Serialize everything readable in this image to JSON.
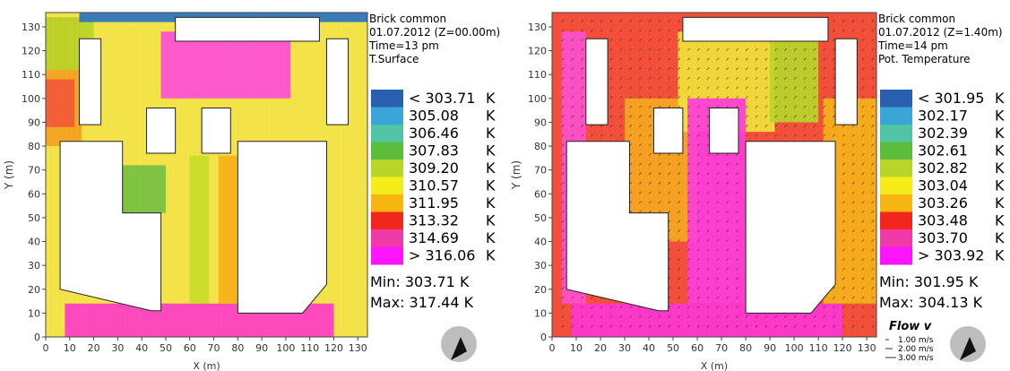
{
  "chart_data": [
    {
      "type": "heatmap",
      "title": "Brick common",
      "date": "01.07.2012 (Z=00.00m)",
      "time": "Time=13 pm",
      "variable": "T.Surface",
      "xlabel": "X (m)",
      "ylabel": "Y (m)",
      "xlim": [
        0,
        134
      ],
      "ylim": [
        0,
        136
      ],
      "xticks": [
        "0",
        "10",
        "20",
        "30",
        "40",
        "50",
        "60",
        "70",
        "80",
        "90",
        "100",
        "110",
        "120",
        "130"
      ],
      "yticks": [
        "0",
        "10",
        "20",
        "30",
        "40",
        "50",
        "60",
        "70",
        "80",
        "90",
        "100",
        "110",
        "120",
        "130"
      ],
      "legend": {
        "items": [
          {
            "label": "< 303.71",
            "unit": "K",
            "color": "#2a5fb0"
          },
          {
            "label": "305.08",
            "unit": "K",
            "color": "#3aa6d8"
          },
          {
            "label": "306.46",
            "unit": "K",
            "color": "#52c4a6"
          },
          {
            "label": "307.83",
            "unit": "K",
            "color": "#5cbc3c"
          },
          {
            "label": "309.20",
            "unit": "K",
            "color": "#b8d62a"
          },
          {
            "label": "310.57",
            "unit": "K",
            "color": "#f5ec1a"
          },
          {
            "label": "311.95",
            "unit": "K",
            "color": "#f7b512"
          },
          {
            "label": "313.32",
            "unit": "K",
            "color": "#f2261d"
          },
          {
            "label": "314.69",
            "unit": "K",
            "color": "#f03aa8"
          },
          {
            "label": "> 316.06",
            "unit": "K",
            "color": "#ff14ff"
          }
        ],
        "min": "Min: 303.71 K",
        "max": "Max: 317.44 K"
      },
      "zones": [
        {
          "x": [
            0,
            134
          ],
          "y": [
            0,
            136
          ],
          "value": "yellow",
          "color": "#f3e23a"
        },
        {
          "x": [
            0,
            15
          ],
          "y": [
            80,
            134
          ],
          "value": "orange",
          "color": "#f3a21f"
        },
        {
          "x": [
            0,
            12
          ],
          "y": [
            88,
            108
          ],
          "value": "red",
          "color": "#f25a3a"
        },
        {
          "x": [
            0,
            20
          ],
          "y": [
            112,
            134
          ],
          "value": "greenish",
          "color": "#b8d62a"
        },
        {
          "x": [
            8,
            120
          ],
          "y": [
            0,
            14
          ],
          "value": "magenta",
          "color": "#ff3dc8"
        },
        {
          "x": [
            48,
            102
          ],
          "y": [
            100,
            128
          ],
          "value": "magenta",
          "color": "#ff4ed8"
        },
        {
          "x": [
            30,
            50
          ],
          "y": [
            52,
            72
          ],
          "value": "green",
          "color": "#76c043"
        },
        {
          "x": [
            60,
            68
          ],
          "y": [
            14,
            76
          ],
          "value": "greenyellow",
          "color": "#c8dd2a"
        },
        {
          "x": [
            72,
            80
          ],
          "y": [
            14,
            76
          ],
          "value": "orange",
          "color": "#f6b21a"
        },
        {
          "x": [
            14,
            134
          ],
          "y": [
            132,
            136
          ],
          "value": "blue",
          "color": "#2b73c4"
        }
      ]
    },
    {
      "type": "heatmap",
      "title": "Brick common",
      "date": "01.07.2012 (Z=1.40m)",
      "time": "Time=14 pm",
      "variable": "Pot. Temperature",
      "xlabel": "X (m)",
      "ylabel": "Y (m)",
      "xlim": [
        0,
        134
      ],
      "ylim": [
        0,
        136
      ],
      "xticks": [
        "0",
        "10",
        "20",
        "30",
        "40",
        "50",
        "60",
        "70",
        "80",
        "90",
        "100",
        "110",
        "120",
        "130"
      ],
      "yticks": [
        "0",
        "10",
        "20",
        "30",
        "40",
        "50",
        "60",
        "70",
        "80",
        "90",
        "100",
        "110",
        "120",
        "130"
      ],
      "legend": {
        "items": [
          {
            "label": "< 301.95",
            "unit": "K",
            "color": "#2a5fb0"
          },
          {
            "label": "302.17",
            "unit": "K",
            "color": "#3aa6d8"
          },
          {
            "label": "302.39",
            "unit": "K",
            "color": "#52c4a6"
          },
          {
            "label": "302.61",
            "unit": "K",
            "color": "#5cbc3c"
          },
          {
            "label": "302.82",
            "unit": "K",
            "color": "#b8d62a"
          },
          {
            "label": "303.04",
            "unit": "K",
            "color": "#f5ec1a"
          },
          {
            "label": "303.26",
            "unit": "K",
            "color": "#f7b512"
          },
          {
            "label": "303.48",
            "unit": "K",
            "color": "#f2261d"
          },
          {
            "label": "303.70",
            "unit": "K",
            "color": "#f03aa8"
          },
          {
            "label": "> 303.92",
            "unit": "K",
            "color": "#ff14ff"
          }
        ],
        "min": "Min: 301.95 K",
        "max": "Max: 304.13 K"
      },
      "flow": {
        "title": "Flow v",
        "items": [
          "1.00 m/s",
          "2.00 m/s",
          "3.00 m/s"
        ]
      },
      "zones": [
        {
          "x": [
            0,
            134
          ],
          "y": [
            0,
            136
          ],
          "value": "red",
          "color": "#f2402a"
        },
        {
          "x": [
            4,
            14
          ],
          "y": [
            14,
            128
          ],
          "value": "magenta",
          "color": "#ff4fd0"
        },
        {
          "x": [
            30,
            60
          ],
          "y": [
            40,
            100
          ],
          "value": "orange",
          "color": "#f6a820"
        },
        {
          "x": [
            52,
            92
          ],
          "y": [
            86,
            128
          ],
          "value": "yellow",
          "color": "#f3e23a"
        },
        {
          "x": [
            90,
            110
          ],
          "y": [
            90,
            128
          ],
          "value": "green",
          "color": "#b8d62a"
        },
        {
          "x": [
            56,
            80
          ],
          "y": [
            14,
            100
          ],
          "value": "magenta",
          "color": "#ff3ddb"
        },
        {
          "x": [
            8,
            120
          ],
          "y": [
            0,
            14
          ],
          "value": "magenta",
          "color": "#ff36d4"
        },
        {
          "x": [
            112,
            134
          ],
          "y": [
            14,
            100
          ],
          "value": "orange",
          "color": "#f7b21a"
        }
      ]
    }
  ]
}
